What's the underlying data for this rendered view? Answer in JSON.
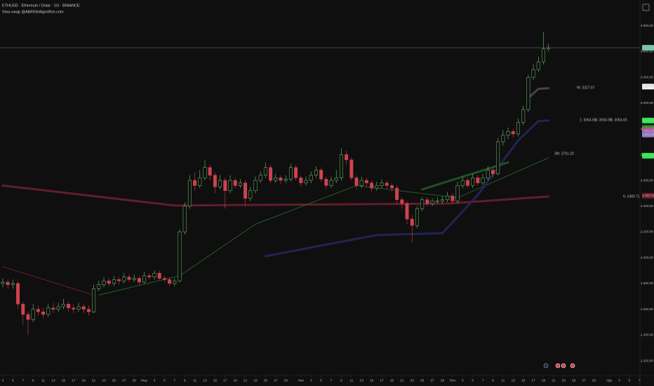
{
  "chart_data": {
    "type": "candlestick",
    "title": "ETHUSD · Ethereum / Dolar · 1G · BINANCE",
    "subtitle": "Sma-vwap @AlbRGbAlgorithm.com",
    "up_color": "#74c474",
    "down_color": "#d0414f",
    "grid": false,
    "xlim": [
      -0.55,
      126.1
    ],
    "xticks": [
      {
        "value": 0,
        "label": "3"
      },
      {
        "value": 2,
        "label": "5"
      },
      {
        "value": 4,
        "label": "7"
      },
      {
        "value": 6,
        "label": "9"
      },
      {
        "value": 8,
        "label": "11"
      },
      {
        "value": 10,
        "label": "13"
      },
      {
        "value": 12,
        "label": "15"
      },
      {
        "value": 14,
        "label": "17"
      },
      {
        "value": 16,
        "label": "19"
      },
      {
        "value": 18,
        "label": "21"
      },
      {
        "value": 20,
        "label": "23"
      },
      {
        "value": 22,
        "label": "25"
      },
      {
        "value": 24,
        "label": "27"
      },
      {
        "value": 26,
        "label": "29"
      },
      {
        "value": 28,
        "label": "May"
      },
      {
        "value": 30,
        "label": "3"
      },
      {
        "value": 32,
        "label": "5"
      },
      {
        "value": 34,
        "label": "7"
      },
      {
        "value": 36,
        "label": "9"
      },
      {
        "value": 38,
        "label": "11"
      },
      {
        "value": 40,
        "label": "13"
      },
      {
        "value": 42,
        "label": "15"
      },
      {
        "value": 44,
        "label": "17"
      },
      {
        "value": 46,
        "label": "19"
      },
      {
        "value": 48,
        "label": "21"
      },
      {
        "value": 50,
        "label": "23"
      },
      {
        "value": 52,
        "label": "25"
      },
      {
        "value": 54,
        "label": "27"
      },
      {
        "value": 56,
        "label": "29"
      },
      {
        "value": 59,
        "label": "Haz"
      },
      {
        "value": 61,
        "label": "3"
      },
      {
        "value": 63,
        "label": "5"
      },
      {
        "value": 65,
        "label": "7"
      },
      {
        "value": 67,
        "label": "9"
      },
      {
        "value": 69,
        "label": "11"
      },
      {
        "value": 71,
        "label": "13"
      },
      {
        "value": 73,
        "label": "15"
      },
      {
        "value": 75,
        "label": "17"
      },
      {
        "value": 77,
        "label": "19"
      },
      {
        "value": 79,
        "label": "21"
      },
      {
        "value": 81,
        "label": "23"
      },
      {
        "value": 83,
        "label": "25"
      },
      {
        "value": 85,
        "label": "27"
      },
      {
        "value": 87,
        "label": "29"
      },
      {
        "value": 89,
        "label": "Tem"
      },
      {
        "value": 91,
        "label": "3"
      },
      {
        "value": 93,
        "label": "5"
      },
      {
        "value": 95,
        "label": "7"
      },
      {
        "value": 97,
        "label": "9"
      },
      {
        "value": 99,
        "label": "11"
      },
      {
        "value": 101,
        "label": "13"
      },
      {
        "value": 103,
        "label": "15"
      },
      {
        "value": 105,
        "label": "17"
      },
      {
        "value": 107,
        "label": "19"
      },
      {
        "value": 109,
        "label": "21"
      },
      {
        "value": 111,
        "label": "23"
      },
      {
        "value": 113,
        "label": "25"
      },
      {
        "value": 115,
        "label": "27"
      },
      {
        "value": 117,
        "label": "29"
      },
      {
        "value": 120,
        "label": "Ağu"
      },
      {
        "value": 122,
        "label": "3"
      },
      {
        "value": 124,
        "label": "5"
      },
      {
        "value": 126,
        "label": "7"
      }
    ],
    "ylim": [
      1086,
      4000
    ],
    "yticks": [
      {
        "value": 1200,
        "label": "1.200,00"
      },
      {
        "value": 1400,
        "label": "1.400,00"
      },
      {
        "value": 1600,
        "label": "1.600,00"
      },
      {
        "value": 1800,
        "label": "1.800,00"
      },
      {
        "value": 2000,
        "label": "2.000,00"
      },
      {
        "value": 2200,
        "label": "2.200,00"
      },
      {
        "value": 2400,
        "label": "2.400,00"
      },
      {
        "value": 2600,
        "label": "2.600,00"
      },
      {
        "value": 2800,
        "label": "2.800,00"
      },
      {
        "value": 3000,
        "label": "3.000,00"
      },
      {
        "value": 3200,
        "label": "3.200,00"
      },
      {
        "value": 3400,
        "label": "3.400,00"
      },
      {
        "value": 3600,
        "label": "3.600,00"
      },
      {
        "value": 3800,
        "label": "3.800,00"
      }
    ],
    "open": [
      1800,
      1810,
      1790,
      1800,
      1640,
      1560,
      1520,
      1600,
      1580,
      1560,
      1610,
      1600,
      1620,
      1640,
      1610,
      1600,
      1620,
      1600,
      1580,
      1760,
      1790,
      1820,
      1800,
      1830,
      1820,
      1850,
      1830,
      1840,
      1810,
      1860,
      1850,
      1880,
      1840,
      1830,
      1800,
      1820,
      2200,
      2400,
      2600,
      2560,
      2620,
      2700,
      2640,
      2550,
      2600,
      2520,
      2600,
      2560,
      2580,
      2460,
      2520,
      2600,
      2640,
      2700,
      2600,
      2620,
      2600,
      2610,
      2700,
      2620,
      2580,
      2600,
      2640,
      2680,
      2610,
      2560,
      2600,
      2620,
      2800,
      2760,
      2620,
      2560,
      2600,
      2580,
      2540,
      2560,
      2580,
      2560,
      2540,
      2450,
      2420,
      2300,
      2250,
      2380,
      2450,
      2420,
      2440,
      2440,
      2450,
      2480,
      2440,
      2560,
      2600,
      2560,
      2620,
      2580,
      2620,
      2680,
      2650,
      2900,
      2950,
      2980,
      2960,
      3050,
      3150,
      3400,
      3460,
      3520,
      3620
    ],
    "high": [
      1840,
      1830,
      1830,
      1820,
      1660,
      1580,
      1640,
      1630,
      1610,
      1640,
      1650,
      1650,
      1680,
      1660,
      1640,
      1650,
      1640,
      1630,
      1790,
      1820,
      1850,
      1840,
      1860,
      1850,
      1880,
      1870,
      1870,
      1860,
      1890,
      1880,
      1900,
      1900,
      1860,
      1850,
      1840,
      2220,
      2430,
      2640,
      2660,
      2680,
      2760,
      2720,
      2660,
      2640,
      2620,
      2640,
      2620,
      2610,
      2600,
      2550,
      2630,
      2670,
      2740,
      2720,
      2650,
      2640,
      2640,
      2730,
      2720,
      2640,
      2630,
      2670,
      2710,
      2700,
      2630,
      2630,
      2680,
      2850,
      2830,
      2780,
      2640,
      2630,
      2620,
      2600,
      2590,
      2610,
      2600,
      2580,
      2560,
      2470,
      2440,
      2330,
      2400,
      2470,
      2470,
      2460,
      2470,
      2480,
      2510,
      2500,
      2590,
      2630,
      2620,
      2650,
      2640,
      2650,
      2710,
      2700,
      2930,
      2990,
      3010,
      3000,
      3080,
      3180,
      3420,
      3500,
      3560,
      3750,
      3660
    ],
    "low": [
      1770,
      1760,
      1760,
      1600,
      1480,
      1400,
      1500,
      1550,
      1530,
      1540,
      1570,
      1580,
      1600,
      1580,
      1570,
      1580,
      1570,
      1550,
      1570,
      1740,
      1770,
      1780,
      1780,
      1790,
      1800,
      1810,
      1810,
      1790,
      1800,
      1830,
      1830,
      1820,
      1810,
      1780,
      1780,
      1810,
      2180,
      2380,
      2520,
      2540,
      2600,
      2600,
      2500,
      2530,
      2380,
      2500,
      2540,
      2540,
      2400,
      2440,
      2500,
      2580,
      2620,
      2580,
      2580,
      2570,
      2580,
      2590,
      2600,
      2550,
      2560,
      2580,
      2620,
      2590,
      2530,
      2540,
      2580,
      2600,
      2720,
      2600,
      2530,
      2540,
      2550,
      2510,
      2520,
      2540,
      2530,
      2510,
      2420,
      2380,
      2260,
      2120,
      2230,
      2360,
      2400,
      2400,
      2420,
      2420,
      2430,
      2420,
      2420,
      2540,
      2540,
      2540,
      2560,
      2560,
      2600,
      2620,
      2640,
      2870,
      2920,
      2930,
      2940,
      3030,
      3130,
      3380,
      3440,
      3500,
      3600
    ],
    "close": [
      1810,
      1790,
      1800,
      1640,
      1560,
      1520,
      1600,
      1580,
      1560,
      1610,
      1600,
      1620,
      1640,
      1610,
      1600,
      1620,
      1600,
      1580,
      1760,
      1790,
      1820,
      1800,
      1830,
      1820,
      1850,
      1830,
      1840,
      1810,
      1860,
      1850,
      1880,
      1840,
      1830,
      1800,
      1820,
      2200,
      2400,
      2600,
      2560,
      2620,
      2700,
      2640,
      2550,
      2600,
      2520,
      2600,
      2560,
      2580,
      2460,
      2520,
      2600,
      2640,
      2700,
      2600,
      2620,
      2600,
      2610,
      2700,
      2620,
      2580,
      2600,
      2640,
      2680,
      2610,
      2560,
      2600,
      2620,
      2800,
      2760,
      2620,
      2560,
      2600,
      2580,
      2540,
      2560,
      2580,
      2560,
      2540,
      2450,
      2420,
      2300,
      2250,
      2380,
      2450,
      2420,
      2440,
      2440,
      2450,
      2480,
      2440,
      2560,
      2600,
      2560,
      2620,
      2580,
      2620,
      2680,
      2650,
      2900,
      2950,
      2980,
      2960,
      3050,
      3150,
      3400,
      3460,
      3520,
      3620,
      3630
    ],
    "overlays": [
      {
        "color": "#6b1f2e",
        "width": 3,
        "x": [
          0,
          34,
          88,
          108
        ],
        "values": [
          2560,
          2405,
          2420,
          2475
        ]
      },
      {
        "color": "#8a2535",
        "width": 0.8,
        "x": [
          0,
          18
        ],
        "values": [
          1930,
          1710
        ]
      },
      {
        "color": "#2f7a34",
        "width": 0.8,
        "x": [
          19,
          35,
          50,
          70,
          90,
          108
        ],
        "values": [
          1710,
          1860,
          2260,
          2560,
          2465,
          2775
        ]
      },
      {
        "color": "#26265e",
        "width": 3,
        "x": [
          52,
          74,
          87,
          94,
          102,
          106,
          108
        ],
        "values": [
          2012,
          2176,
          2190,
          2486,
          2910,
          3060,
          3065
        ]
      },
      {
        "color": "#1f5a27",
        "width": 3,
        "x": [
          83,
          96,
          100
        ],
        "values": [
          2530,
          2690,
          2740
        ]
      },
      {
        "color": "#4a4a4a",
        "width": 3,
        "x": [
          104,
          106,
          108
        ],
        "values": [
          3240,
          3310,
          3315
        ]
      }
    ],
    "price_labels": [
      {
        "value": 3629.64,
        "label": "3.629,64",
        "color": "#6cc4a8",
        "text_color": "#0f0f0f"
      },
      {
        "value": 3327.97,
        "label": "3.327,97",
        "color": "#f2f2f2",
        "text_color": "#0f0f0f"
      },
      {
        "value": 3064.65,
        "label": "3.064,65",
        "color": "#2ee84a",
        "text_color": "#0f0f0f"
      },
      {
        "value": 3007.93,
        "label": "3.007,93",
        "color": "#2e7d32",
        "text_color": "#ffffff"
      },
      {
        "value": 2982.4,
        "label": "2.982,40",
        "color": "#c054a6",
        "text_color": "#ffffff"
      },
      {
        "value": 2956.18,
        "label": "2.956,18",
        "color": "#8d78c8",
        "text_color": "#ffffff"
      },
      {
        "value": 2791.2,
        "label": "2.791,20",
        "color": "#2ee84a",
        "text_color": "#0f0f0f"
      },
      {
        "value": 2480.71,
        "label": "2.480,71",
        "color": "#6b1f2e",
        "text_color": "#ffffff"
      }
    ],
    "annotations": [
      {
        "text": "W: 3327.97",
        "color": "#e8e8e8"
      },
      {
        "text": "1: 3064.65",
        "color": "#3ddc55"
      },
      {
        "text": "3: 3064.65",
        "color": "#6e6ec8"
      },
      {
        "text": "6: 3064.65",
        "color": "#d0508e"
      },
      {
        "text": "3M: 2791.20",
        "color": "#2e9a3a"
      },
      {
        "text": "6: 2480.71",
        "color": "#8a2d3c"
      }
    ]
  }
}
